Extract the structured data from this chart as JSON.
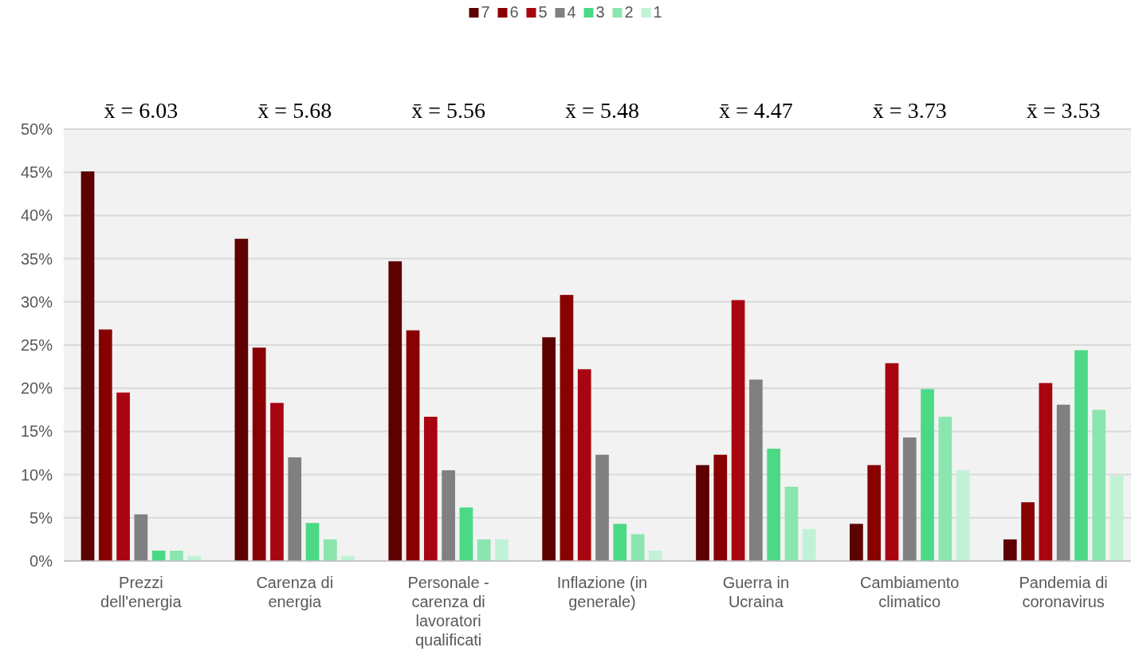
{
  "chart_data": {
    "type": "bar",
    "categories": [
      "Prezzi dell'energia",
      "Carenza di energia",
      "Personale - carenza di lavoratori qualificati",
      "Inflazione (in generale)",
      "Guerra in Ucraina",
      "Cambiamento climatico",
      "Pandemia di coronavirus"
    ],
    "series": [
      {
        "name": "7",
        "color": "#5c0000",
        "values": [
          45.1,
          37.3,
          34.7,
          25.9,
          11.1,
          4.3,
          2.5
        ]
      },
      {
        "name": "6",
        "color": "#880000",
        "values": [
          26.8,
          24.7,
          26.7,
          30.8,
          12.3,
          11.1,
          6.8
        ]
      },
      {
        "name": "5",
        "color": "#a80510",
        "values": [
          19.5,
          18.3,
          16.7,
          22.2,
          30.2,
          22.9,
          20.6
        ]
      },
      {
        "name": "4",
        "color": "#808080",
        "values": [
          5.4,
          12.0,
          10.5,
          12.3,
          21.0,
          14.3,
          18.1
        ]
      },
      {
        "name": "3",
        "color": "#4cd986",
        "values": [
          1.2,
          4.4,
          6.2,
          4.3,
          13.0,
          19.9,
          24.4
        ]
      },
      {
        "name": "2",
        "color": "#8ae6ae",
        "values": [
          1.2,
          2.5,
          2.5,
          3.1,
          8.6,
          16.7,
          17.5
        ]
      },
      {
        "name": "1",
        "color": "#c2f2d6",
        "values": [
          0.6,
          0.6,
          2.5,
          1.2,
          3.7,
          10.5,
          9.9
        ]
      }
    ],
    "ylim": [
      0,
      50
    ],
    "yticks": [
      {
        "value": 0,
        "label": "0%"
      },
      {
        "value": 5,
        "label": "5%"
      },
      {
        "value": 10,
        "label": "10%"
      },
      {
        "value": 15,
        "label": "15%"
      },
      {
        "value": 20,
        "label": "20%"
      },
      {
        "value": 25,
        "label": "25%"
      },
      {
        "value": 30,
        "label": "30%"
      },
      {
        "value": 35,
        "label": "35%"
      },
      {
        "value": 40,
        "label": "40%"
      },
      {
        "value": 45,
        "label": "45%"
      },
      {
        "value": 50,
        "label": "50%"
      }
    ],
    "grid": "y",
    "legend": "top",
    "annotations": [
      "x̄ = 6.03",
      "x̄ = 5.68",
      "x̄ = 5.56",
      "x̄ = 5.48",
      "x̄ = 4.47",
      "x̄ = 3.73",
      "x̄ = 3.53"
    ]
  }
}
